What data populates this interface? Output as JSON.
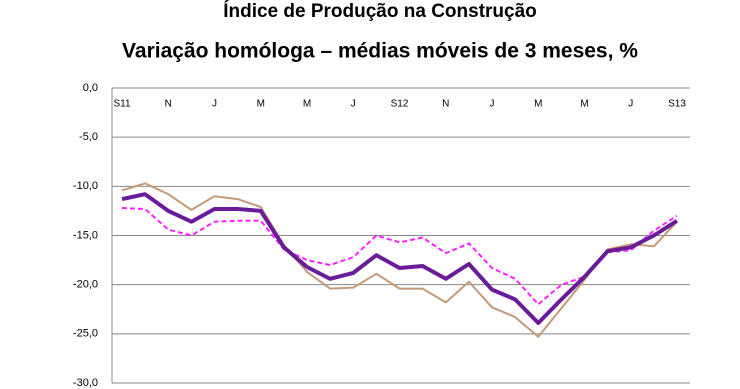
{
  "chart_data": {
    "type": "line",
    "title": "Índice de Produção na Construção",
    "subtitle": "Variação homóloga – médias móveis de 3 meses, %",
    "categories": [
      "S11",
      null,
      "N",
      null,
      "J",
      null,
      "M",
      null,
      "M",
      null,
      "J",
      null,
      "S12",
      null,
      "N",
      null,
      "J",
      null,
      "M",
      null,
      "M",
      null,
      "J",
      null,
      "S13"
    ],
    "series": [
      {
        "color": "#c49a78",
        "linestyle": "solid",
        "values": [
          -10.4,
          -9.7,
          -10.8,
          -12.4,
          -11.0,
          -11.3,
          -12.1,
          -16.0,
          -18.7,
          -20.4,
          -20.3,
          -18.9,
          -20.4,
          -20.4,
          -21.8,
          -19.7,
          -22.3,
          -23.3,
          -25.3,
          -22.4,
          -19.5,
          -16.4,
          -15.9,
          -16.1,
          -13.6
        ]
      },
      {
        "color": "#ff22ff",
        "linestyle": "dashed",
        "values": [
          -12.2,
          -12.3,
          -14.4,
          -15.0,
          -13.6,
          -13.5,
          -13.5,
          -16.4,
          -17.5,
          -18.0,
          -17.2,
          -15.0,
          -15.7,
          -15.2,
          -16.8,
          -15.8,
          -18.3,
          -19.4,
          -22.0,
          -20.0,
          -19.2,
          -16.7,
          -16.5,
          -14.5,
          -13.0
        ]
      },
      {
        "color": "#6a1b9a",
        "linestyle": "solid",
        "values": [
          -11.3,
          -10.8,
          -12.5,
          -13.6,
          -12.3,
          -12.3,
          -12.5,
          -16.2,
          -18.2,
          -19.4,
          -18.8,
          -17.0,
          -18.3,
          -18.1,
          -19.4,
          -17.9,
          -20.5,
          -21.5,
          -23.9,
          -21.5,
          -19.2,
          -16.6,
          -16.2,
          -15.0,
          -13.5
        ]
      }
    ],
    "ylim": [
      -30,
      0
    ],
    "yticks": [
      {
        "value": 0,
        "label": "0,0"
      },
      {
        "value": -5,
        "label": "-5,0"
      },
      {
        "value": -10,
        "label": "-10,0"
      },
      {
        "value": -15,
        "label": "-15,0"
      },
      {
        "value": -20,
        "label": "-20,0"
      },
      {
        "value": -25,
        "label": "-25,0"
      },
      {
        "value": -30,
        "label": "-30,0"
      }
    ],
    "grid": true
  }
}
